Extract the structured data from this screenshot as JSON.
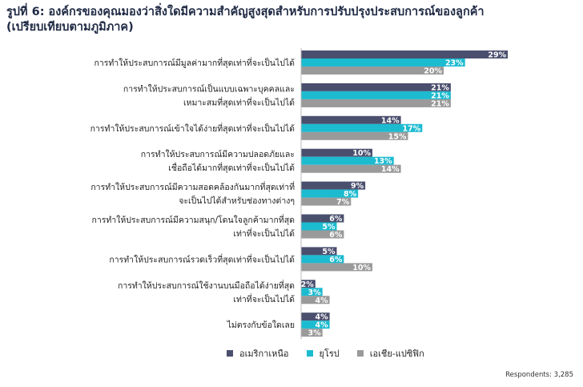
{
  "title_line1": "รูปที่ 6: องค์กรของคุณมองว่าสิ่งใดมีความสำคัญสูงสุดสำหรับการปรับปรุงประสบการณ์ของลูกค้า",
  "title_line2": "(เปรียบเทียบตามภูมิภาค)",
  "respondents": "Respondents: 3,285",
  "colors": {
    "north_america": "#4b4f6e",
    "europe": "#1cbbd0",
    "asia_pacific": "#9a9a9a"
  },
  "chart_data": {
    "type": "bar",
    "orientation": "horizontal",
    "unit": "%",
    "categories": [
      [
        "การทำให้ประสบการณ์มีมูลค่ามากที่สุดเท่าที่จะเป็นไปได้"
      ],
      [
        "การทำให้ประสบการณ์เป็นแบบเฉพาะบุคคลและ",
        "เหมาะสมที่สุดเท่าที่จะเป็นไปได้"
      ],
      [
        "การทำให้ประสบการณ์เข้าใจได้ง่ายที่สุดเท่าที่จะเป็นไปได้"
      ],
      [
        "การทำให้ประสบการณ์มีความปลอดภัยและ",
        "เชื่อถือได้มากที่สุดเท่าที่จะเป็นไปได้"
      ],
      [
        "การทำให้ประสบการณ์มีความสอดคล้องกันมากที่สุดเท่าที่",
        "จะเป็นไปได้สำหรับช่องทางต่างๆ"
      ],
      [
        "การทำให้ประสบการณ์มีความสนุก/โดนใจลูกค้ามากที่สุด",
        "เท่าที่จะเป็นไปได้"
      ],
      [
        "การทำให้ประสบการณ์รวดเร็วที่สุดเท่าที่จะเป็นไปได้"
      ],
      [
        "การทำให้ประสบการณ์ใช้งานบนมือถือได้ง่ายที่สุด",
        "เท่าที่จะเป็นไปได้"
      ],
      [
        "ไม่ตรงกับข้อใดเลย"
      ]
    ],
    "series": [
      {
        "name": "อเมริกาเหนือ",
        "values": [
          29,
          21,
          14,
          10,
          9,
          6,
          5,
          2,
          4
        ]
      },
      {
        "name": "ยุโรป",
        "values": [
          23,
          21,
          17,
          13,
          8,
          5,
          6,
          3,
          4
        ]
      },
      {
        "name": "เอเชีย-แปซิฟิก",
        "values": [
          20,
          21,
          15,
          14,
          7,
          6,
          10,
          4,
          3
        ]
      }
    ],
    "labels": [
      [
        "29%",
        "21%",
        "14%",
        "10%",
        "9%",
        "6%",
        "5%",
        "2%",
        "4%"
      ],
      [
        "23%",
        "21%",
        "17%",
        "13%",
        "8%",
        "5%",
        "6%",
        "3%",
        "4%"
      ],
      [
        "20%",
        "21%",
        "15%",
        "14%",
        "7%",
        "6%",
        "10%",
        "4%",
        "3%"
      ]
    ],
    "legend_position": "bottom",
    "grid": false
  }
}
